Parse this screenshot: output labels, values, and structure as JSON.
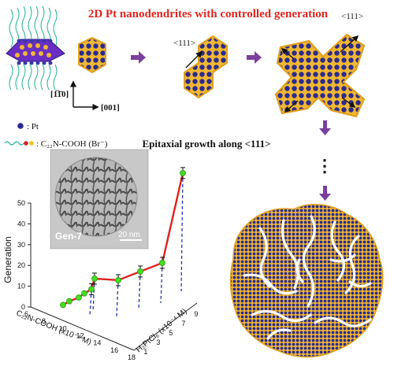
{
  "title": "2D Pt nanodendrites with controlled generation",
  "direction_labels": {
    "d111_a": "<111>",
    "d111_b": "<111>",
    "d1_10": "[1̅1̄0]",
    "d001": "[001]"
  },
  "legend": {
    "pt_label": ": Pt",
    "surfactant_label": ": C₂₂N-COOH (Br⁻)"
  },
  "growth_caption": "Epitaxial growth along <111>",
  "ellipsis": "⋮",
  "tem": {
    "label": "Gen-7",
    "scale": "20 nm"
  },
  "colors": {
    "title_red": "#e0251f",
    "arrow_purple": "#7b3f9e",
    "pt_atom": "#2c2a8f",
    "particle_gold": "#f0b830",
    "chain_teal": "#2bb59a",
    "line_red": "#e02020",
    "point_green": "#44dd22"
  },
  "chart_data": {
    "type": "scatter",
    "zlabel": "Generation",
    "xlabel": "C₂₂N-COOH (x10⁻⁴ M)",
    "ylabel": "H₂PtCl₆ (x10⁻⁴ M)",
    "z_ticks": [
      "0",
      "10",
      "20",
      "30",
      "40",
      "50"
    ],
    "x_ticks": [
      "6",
      "8",
      "10",
      "12",
      "14",
      "16",
      "18"
    ],
    "y_ticks": [
      "1",
      "3",
      "5",
      "7",
      "9"
    ],
    "points": [
      {
        "generation": 1
      },
      {
        "generation": 2
      },
      {
        "generation": 3
      },
      {
        "generation": 5
      },
      {
        "generation": 7
      },
      {
        "generation": 12
      },
      {
        "generation": 16
      },
      {
        "generation": 19
      },
      {
        "generation": 21
      },
      {
        "generation": 50
      }
    ]
  }
}
